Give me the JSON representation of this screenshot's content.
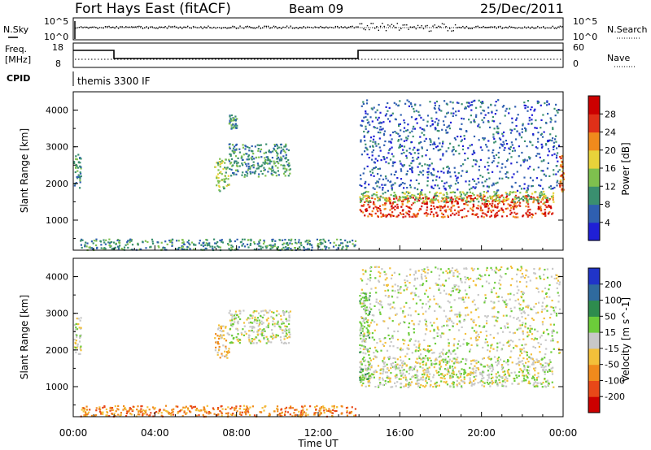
{
  "header": {
    "title": "Fort Hays East (fitACF)",
    "beam": "Beam 09",
    "date": "25/Dec/2011"
  },
  "status_panels": {
    "nsky": {
      "label": "N.Sky",
      "tick_top": "10^5",
      "tick_bottom": "10^0",
      "right_label": "N.Search",
      "right_tick_top": "10^5",
      "right_tick_bottom": "10^0"
    },
    "freq": {
      "label_line1": "Freq.",
      "label_line2": "[MHz]",
      "tick_top": "18",
      "tick_bottom": "8",
      "right_label": "Nave",
      "right_tick_top": "60",
      "right_tick_bottom": "0"
    },
    "cpid": {
      "label": "CPID",
      "program": "themis 3300 IF"
    }
  },
  "chart_data": [
    {
      "type": "heatmap",
      "name": "power",
      "xlabel": "",
      "ylabel": "Slant Range [km]",
      "xlim": [
        0,
        24
      ],
      "ylim": [
        180,
        4500
      ],
      "yticks": [
        1000,
        2000,
        3000,
        4000
      ],
      "colorbar": {
        "label": "Power [dB]",
        "ticks": [
          "4",
          "8",
          "12",
          "16",
          "20",
          "24",
          "28"
        ],
        "colors": [
          "#1f1fd6",
          "#2f5fb0",
          "#3a8f6f",
          "#7ec04e",
          "#e8d33a",
          "#f08a1c",
          "#e03018",
          "#cc0000"
        ]
      },
      "regions": [
        {
          "t": [
            0.0,
            0.35
          ],
          "r": [
            1900,
            2900
          ],
          "level": 2
        },
        {
          "t": [
            6.9,
            7.6
          ],
          "r": [
            1800,
            2700
          ],
          "level": 3
        },
        {
          "t": [
            7.6,
            10.6
          ],
          "r": [
            2200,
            3100
          ],
          "level": 2
        },
        {
          "t": [
            7.6,
            8.0
          ],
          "r": [
            3500,
            3900
          ],
          "level": 2
        },
        {
          "t": [
            0.3,
            13.8
          ],
          "r": [
            200,
            500
          ],
          "level": 2
        },
        {
          "t": [
            14.0,
            23.5
          ],
          "r": [
            1100,
            1700
          ],
          "level": 6
        },
        {
          "t": [
            14.0,
            23.5
          ],
          "r": [
            1500,
            1800
          ],
          "level": 3
        },
        {
          "t": [
            14.0,
            23.8
          ],
          "r": [
            1800,
            4300
          ],
          "level": 1
        },
        {
          "t": [
            23.8,
            24.0
          ],
          "r": [
            1800,
            2800
          ],
          "level": 5
        }
      ]
    },
    {
      "type": "heatmap",
      "name": "velocity",
      "xlabel": "Time UT",
      "ylabel": "Slant Range [km]",
      "xlim": [
        0,
        24
      ],
      "ylim": [
        180,
        4500
      ],
      "yticks": [
        1000,
        2000,
        3000,
        4000
      ],
      "xticks": [
        "00:00",
        "04:00",
        "08:00",
        "12:00",
        "16:00",
        "20:00",
        "00:00"
      ],
      "colorbar": {
        "label": "Velocity [m s^-1]",
        "ticks": [
          "200",
          "100",
          "50",
          "15",
          "-15",
          "-50",
          "-100",
          "-200"
        ],
        "colors": [
          "#2034c8",
          "#2f6a9e",
          "#2e8c4e",
          "#6ccc3a",
          "#c8c8c8",
          "#f3c03a",
          "#f08a1c",
          "#e84818",
          "#cc0000"
        ]
      },
      "regions": [
        {
          "t": [
            0.0,
            0.35
          ],
          "r": [
            1900,
            2900
          ],
          "level": 4
        },
        {
          "t": [
            6.9,
            7.6
          ],
          "r": [
            1800,
            2700
          ],
          "level": 5
        },
        {
          "t": [
            7.6,
            10.6
          ],
          "r": [
            2200,
            3100
          ],
          "level": 4
        },
        {
          "t": [
            0.3,
            13.8
          ],
          "r": [
            200,
            500
          ],
          "level": 6
        },
        {
          "t": [
            14.0,
            23.5
          ],
          "r": [
            1000,
            1800
          ],
          "level": 4
        },
        {
          "t": [
            14.0,
            14.5
          ],
          "r": [
            1200,
            3600
          ],
          "level": 3
        },
        {
          "t": [
            14.0,
            23.8
          ],
          "r": [
            1800,
            4300
          ],
          "level": 4
        }
      ]
    }
  ],
  "colors": {
    "axis": "#000000",
    "background": "#ffffff"
  }
}
